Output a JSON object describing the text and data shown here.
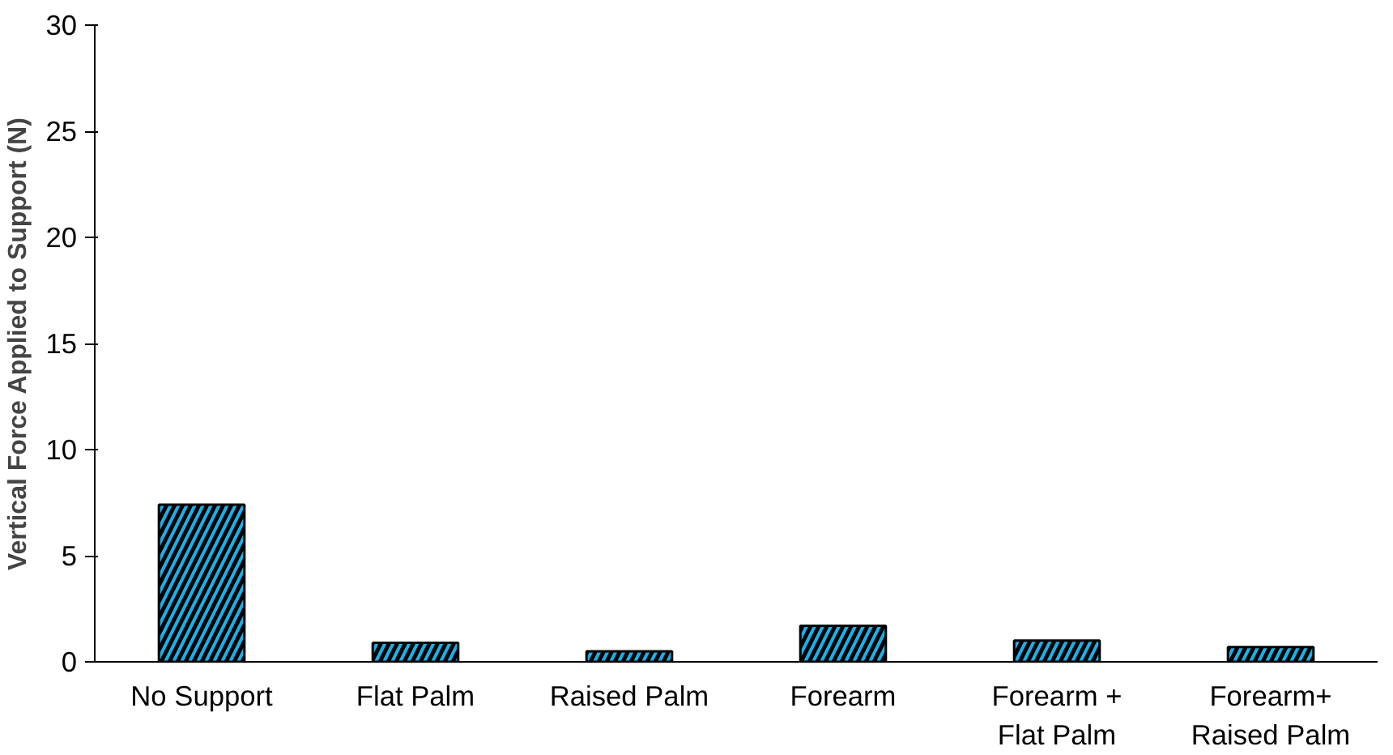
{
  "chart_data": {
    "type": "bar",
    "ylabel": "Vertical Force Applied to Support (N)",
    "categories": [
      "No Support",
      "Flat Palm",
      "Raised Palm",
      "Forearm",
      "Forearm +\nFlat Palm",
      "Forearm+\nRaised Palm"
    ],
    "values": [
      7.4,
      0.9,
      0.5,
      1.7,
      1.0,
      0.7
    ],
    "color": "#1ab0e8",
    "ylim": [
      0,
      30
    ],
    "yticks": [
      0,
      5,
      10,
      15,
      20,
      25,
      30
    ],
    "grid": false
  }
}
